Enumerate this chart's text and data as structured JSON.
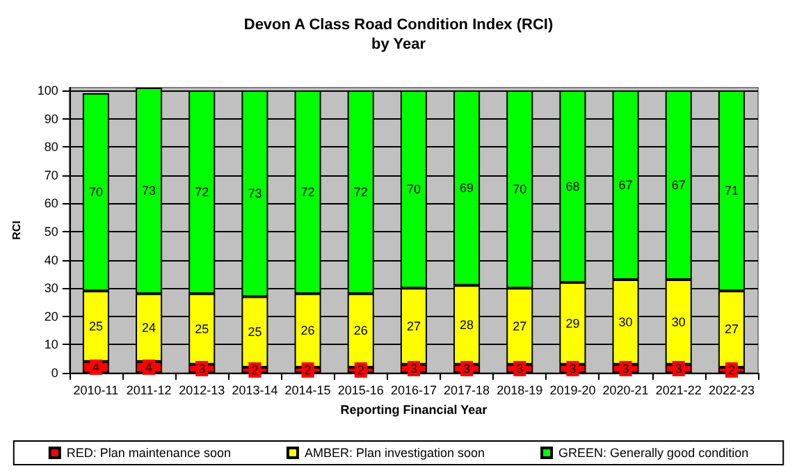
{
  "chart_data": {
    "type": "bar",
    "title": "Devon A Class Road Condition Index (RCI)\nby Year",
    "xlabel": "Reporting Financial Year",
    "ylabel": "RCI",
    "categories": [
      "2010-11",
      "2011-12",
      "2012-13",
      "2013-14",
      "2014-15",
      "2015-16",
      "2016-17",
      "2017-18",
      "2018-19",
      "2019-20",
      "2020-21",
      "2021-22",
      "2022-23"
    ],
    "stacked": true,
    "data_labels": true,
    "grid": "y",
    "legend": "bottom",
    "series": [
      {
        "name": "RED: Plan maintenance soon",
        "color": "#ff0000",
        "values": [
          4,
          4,
          3,
          2,
          2,
          2,
          3,
          3,
          3,
          3,
          3,
          3,
          2
        ]
      },
      {
        "name": "AMBER: Plan investigation soon",
        "color": "#ffff00",
        "values": [
          25,
          24,
          25,
          25,
          26,
          26,
          27,
          28,
          27,
          29,
          30,
          30,
          27
        ]
      },
      {
        "name": "GREEN: Generally good condition",
        "color": "#00ff00",
        "values": [
          70,
          73,
          72,
          73,
          72,
          72,
          70,
          69,
          70,
          68,
          67,
          67,
          71
        ]
      }
    ],
    "ylim": [
      0,
      101
    ],
    "yticks": [
      0,
      10,
      20,
      30,
      40,
      50,
      60,
      70,
      80,
      90,
      100
    ]
  }
}
